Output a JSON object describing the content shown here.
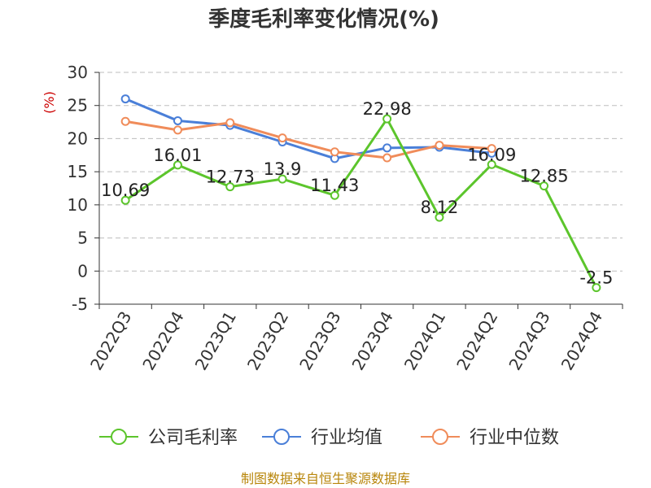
{
  "chart_data": {
    "type": "line",
    "title": "季度毛利率变化情况(%)",
    "ylabel": "(%)",
    "xlabel": "",
    "categories": [
      "2022Q3",
      "2022Q4",
      "2023Q1",
      "2023Q2",
      "2023Q3",
      "2023Q4",
      "2024Q1",
      "2024Q2",
      "2024Q3",
      "2024Q4"
    ],
    "ylim": [
      -5,
      30
    ],
    "yticks": [
      -5,
      0,
      5,
      10,
      15,
      20,
      25,
      30
    ],
    "grid": true,
    "legend": "bottom",
    "series": [
      {
        "name": "公司毛利率",
        "color": "#5cc52c",
        "values": [
          10.69,
          16.01,
          12.73,
          13.9,
          11.43,
          22.98,
          8.12,
          16.09,
          12.85,
          -2.5
        ],
        "labels": [
          "10.69",
          "16.01",
          "12.73",
          "13.9",
          "11.43",
          "22.98",
          "8.12",
          "16.09",
          "12.85",
          "-2.5"
        ]
      },
      {
        "name": "行业均值",
        "color": "#4a7fd8",
        "values": [
          26.0,
          22.7,
          22.0,
          19.5,
          17.0,
          18.6,
          18.7,
          17.8,
          null,
          null
        ]
      },
      {
        "name": "行业中位数",
        "color": "#f08c5a",
        "values": [
          22.6,
          21.3,
          22.4,
          20.1,
          18.0,
          17.1,
          19.0,
          18.5,
          null,
          null
        ]
      }
    ]
  },
  "footer": {
    "source": "制图数据来自恒生聚源数据库"
  }
}
